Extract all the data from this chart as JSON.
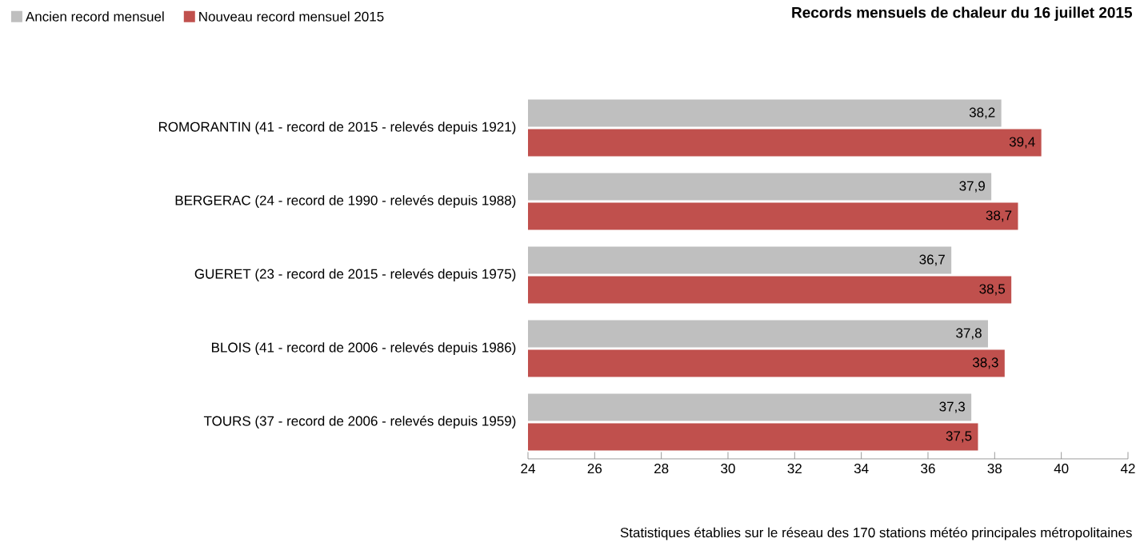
{
  "chart_data": {
    "type": "bar",
    "orientation": "horizontal",
    "title": "Records mensuels de chaleur du 16 juillet 2015",
    "annotations": [
      "Statistiques établies sur le réseau des 170 stations météo principales métropolitaines"
    ],
    "categories": [
      "ROMORANTIN (41 - record de 2015 - relevés depuis 1921)",
      "BERGERAC (24 - record de 1990 - relevés depuis 1988)",
      "GUERET (23 - record de 2015 - relevés depuis 1975)",
      "BLOIS (41 - record de 2006 - relevés depuis 1986)",
      "TOURS (37 - record de 2006 - relevés depuis 1959)"
    ],
    "series": [
      {
        "name": "Ancien record mensuel",
        "color": "#bfbfbf",
        "values": [
          38.2,
          37.9,
          36.7,
          37.8,
          37.3
        ],
        "value_labels": [
          "38,2",
          "37,9",
          "36,7",
          "37,8",
          "37,3"
        ]
      },
      {
        "name": "Nouveau record mensuel 2015",
        "color": "#c0504d",
        "values": [
          39.4,
          38.7,
          38.5,
          38.3,
          37.5
        ],
        "value_labels": [
          "39,4",
          "38,7",
          "38,5",
          "38,3",
          "37,5"
        ]
      }
    ],
    "xlim": [
      24,
      42
    ],
    "xticks": [
      24,
      26,
      28,
      30,
      32,
      34,
      36,
      38,
      40,
      42
    ],
    "grid": false,
    "legend": "top left"
  }
}
